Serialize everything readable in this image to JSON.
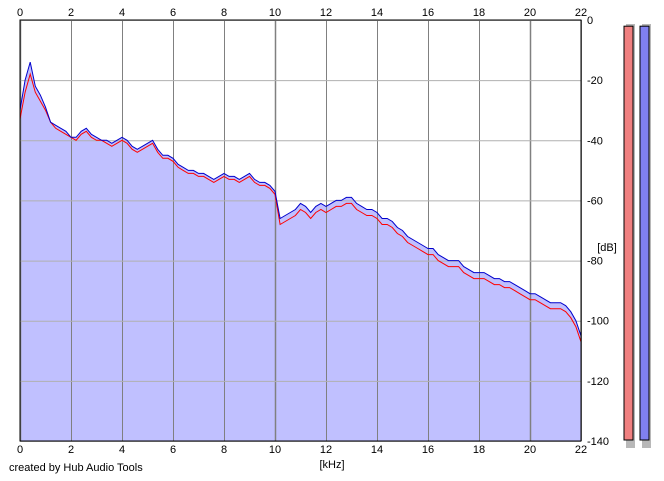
{
  "chart_data": {
    "type": "area",
    "xlabel": "[kHz]",
    "ylabel": "[dB]",
    "xlim": [
      0,
      22
    ],
    "ylim": [
      -140,
      0
    ],
    "x_ticks": [
      "0",
      "2",
      "4",
      "6",
      "8",
      "10",
      "12",
      "14",
      "16",
      "18",
      "20",
      "22"
    ],
    "y_ticks": [
      "0",
      "-20",
      "-40",
      "-60",
      "-80",
      "-100",
      "-120",
      "-140"
    ],
    "grid": true,
    "x": [
      0,
      0.2,
      0.4,
      0.6,
      0.8,
      1,
      1.2,
      1.4,
      1.6,
      1.8,
      2,
      2.2,
      2.4,
      2.6,
      2.8,
      3,
      3.2,
      3.4,
      3.6,
      3.8,
      4,
      4.2,
      4.4,
      4.6,
      4.8,
      5,
      5.2,
      5.4,
      5.6,
      5.8,
      6,
      6.2,
      6.4,
      6.6,
      6.8,
      7,
      7.2,
      7.4,
      7.6,
      7.8,
      8,
      8.2,
      8.4,
      8.6,
      8.8,
      9,
      9.2,
      9.4,
      9.6,
      9.8,
      10,
      10.2,
      10.4,
      10.6,
      10.8,
      11,
      11.2,
      11.4,
      11.6,
      11.8,
      12,
      12.2,
      12.4,
      12.6,
      12.8,
      13,
      13.2,
      13.4,
      13.6,
      13.8,
      14,
      14.2,
      14.4,
      14.6,
      14.8,
      15,
      15.2,
      15.4,
      15.6,
      15.8,
      16,
      16.2,
      16.4,
      16.6,
      16.8,
      17,
      17.2,
      17.4,
      17.6,
      17.8,
      18,
      18.2,
      18.4,
      18.6,
      18.8,
      19,
      19.2,
      19.4,
      19.6,
      19.8,
      20,
      20.2,
      20.4,
      20.6,
      20.8,
      21,
      21.2,
      21.4,
      21.6,
      21.8,
      22
    ],
    "series": [
      {
        "color": "#ff0000",
        "values": [
          -33,
          -24,
          -18,
          -24,
          -27,
          -30,
          -34,
          -36,
          -37,
          -38,
          -39,
          -40,
          -38,
          -37,
          -39,
          -40,
          -40,
          -41,
          -42,
          -41,
          -40,
          -41,
          -43,
          -44,
          -43,
          -42,
          -41,
          -44,
          -46,
          -46,
          -47,
          -49,
          -50,
          -51,
          -51,
          -52,
          -52,
          -53,
          -54,
          -53,
          -52,
          -53,
          -53,
          -54,
          -53,
          -52,
          -54,
          -55,
          -55,
          -56,
          -58,
          -68,
          -67,
          -66,
          -65,
          -63,
          -64,
          -66,
          -64,
          -63,
          -64,
          -63,
          -62,
          -62,
          -61,
          -61,
          -63,
          -64,
          -65,
          -65,
          -66,
          -68,
          -68,
          -69,
          -71,
          -72,
          -74,
          -75,
          -76,
          -77,
          -78,
          -78,
          -80,
          -81,
          -82,
          -82,
          -82,
          -84,
          -85,
          -86,
          -86,
          -86,
          -87,
          -88,
          -88,
          -89,
          -89,
          -90,
          -91,
          -92,
          -93,
          -93,
          -94,
          -95,
          -96,
          -96,
          -96,
          -97,
          -99,
          -102,
          -107
        ]
      },
      {
        "color": "#0000cc",
        "values": [
          -30,
          -20,
          -14,
          -22,
          -25,
          -29,
          -34,
          -35,
          -36,
          -37,
          -39,
          -39,
          -37,
          -36,
          -38,
          -39,
          -40,
          -40,
          -41,
          -40,
          -39,
          -40,
          -42,
          -43,
          -42,
          -41,
          -40,
          -43,
          -45,
          -45,
          -46,
          -48,
          -49,
          -50,
          -50,
          -51,
          -51,
          -52,
          -53,
          -52,
          -51,
          -52,
          -52,
          -53,
          -52,
          -51,
          -53,
          -54,
          -54,
          -55,
          -57,
          -66,
          -65,
          -64,
          -63,
          -61,
          -62,
          -64,
          -62,
          -61,
          -62,
          -61,
          -60,
          -60,
          -59,
          -59,
          -61,
          -62,
          -63,
          -63,
          -64,
          -66,
          -66,
          -67,
          -69,
          -70,
          -72,
          -73,
          -74,
          -75,
          -76,
          -76,
          -78,
          -79,
          -80,
          -80,
          -80,
          -82,
          -83,
          -84,
          -84,
          -84,
          -85,
          -86,
          -86,
          -87,
          -87,
          -88,
          -89,
          -90,
          -91,
          -91,
          -92,
          -93,
          -94,
          -94,
          -94,
          -95,
          -97,
          -100,
          -105
        ]
      }
    ],
    "fill_color": "#c0c0ff"
  },
  "meters": {
    "left": {
      "color": "#f08080",
      "level": 0.99
    },
    "right": {
      "color": "#8080f0",
      "level": 0.99
    }
  },
  "credit": "created by Hub Audio Tools"
}
